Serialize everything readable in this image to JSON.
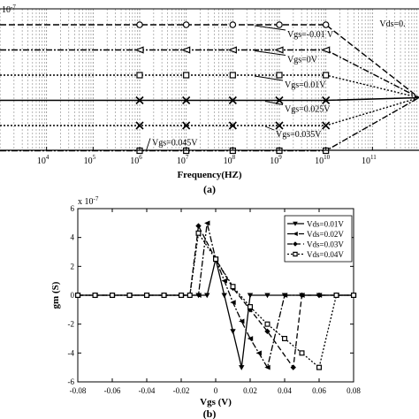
{
  "chart_data": [
    {
      "type": "line",
      "panel_label": "(a)",
      "title": "",
      "xlabel": "Frequency(HZ)",
      "ylabel": "",
      "multiplier": "10",
      "multiplier_exp": "-7",
      "xscale": "log",
      "xlim": [
        1000,
        1000000000000
      ],
      "x_ticks": [
        {
          "base": "10",
          "exp": "4",
          "value": 10000
        },
        {
          "base": "10",
          "exp": "5",
          "value": 100000
        },
        {
          "base": "10",
          "exp": "6",
          "value": 1000000
        },
        {
          "base": "10",
          "exp": "7",
          "value": 10000000
        },
        {
          "base": "10",
          "exp": "8",
          "value": 100000000
        },
        {
          "base": "10",
          "exp": "9",
          "value": 1000000000
        },
        {
          "base": "10",
          "exp": "10",
          "value": 10000000000
        },
        {
          "base": "10",
          "exp": "11",
          "value": 100000000000
        }
      ],
      "grid": true,
      "marker_x": [
        1000000,
        10000000,
        100000000,
        1000000000,
        10000000000
      ],
      "series": [
        {
          "label": "Vgs=-0.01 V",
          "style": "dash",
          "marker": "circle",
          "level": 1
        },
        {
          "label": "Vgs=0V",
          "style": "dashdot",
          "marker": "triangle",
          "level": 2
        },
        {
          "label": "Vgs=0.01V",
          "style": "dot",
          "marker": "square",
          "level": 3
        },
        {
          "label": "Vgs=0.025V",
          "style": "solid",
          "marker": "x",
          "level": 4
        },
        {
          "label": "Vgs=0.035V",
          "style": "dot",
          "marker": "x",
          "level": 5
        },
        {
          "label": "Vgs=0.045V",
          "style": "dashdot",
          "marker": "square",
          "level": 6
        }
      ],
      "legend_fragment": "Vds=0."
    },
    {
      "type": "line",
      "panel_label": "(b)",
      "title": "",
      "xlabel": "Vgs (V)",
      "ylabel": "gm (S)",
      "multiplier": "x 10",
      "multiplier_exp": "-7",
      "xlim": [
        -0.08,
        0.08
      ],
      "ylim": [
        -6,
        6
      ],
      "x_ticks": [
        "-0.08",
        "-0.06",
        "-0.04",
        "-0.02",
        "0",
        "0.02",
        "0.04",
        "0.06",
        "0.08"
      ],
      "y_ticks": [
        "-6",
        "-4",
        "-2",
        "0",
        "2",
        "4",
        "6"
      ],
      "grid": false,
      "legend_position": "top-right",
      "series": [
        {
          "name": "Vds=0.01V",
          "marker": "triangle-down",
          "style": "solid",
          "x": [
            -0.08,
            -0.07,
            -0.06,
            -0.05,
            -0.04,
            -0.03,
            -0.02,
            -0.01,
            -0.005,
            0,
            0.005,
            0.01,
            0.015,
            0.02,
            0.03,
            0.04,
            0.05,
            0.06,
            0.07,
            0.08
          ],
          "y": [
            0,
            0,
            0,
            0,
            0,
            0,
            0,
            0,
            0,
            2.5,
            0,
            -2.5,
            -5,
            0,
            0,
            0,
            0,
            0,
            0,
            0
          ]
        },
        {
          "name": "Vds=0.02V",
          "marker": "triangle-left",
          "style": "dashdot",
          "x": [
            -0.08,
            -0.07,
            -0.06,
            -0.05,
            -0.04,
            -0.03,
            -0.02,
            -0.01,
            -0.005,
            0,
            0.005,
            0.01,
            0.015,
            0.02,
            0.025,
            0.03,
            0.04,
            0.05,
            0.06,
            0.07,
            0.08
          ],
          "y": [
            0,
            0,
            0,
            0,
            0,
            0,
            0,
            0,
            5,
            2.5,
            1,
            -0.5,
            -1.8,
            -3,
            -4,
            -5,
            0,
            0,
            0,
            0,
            0
          ]
        },
        {
          "name": "Vds=0.03V",
          "marker": "diamond",
          "style": "dashed",
          "x": [
            -0.08,
            -0.07,
            -0.06,
            -0.05,
            -0.04,
            -0.03,
            -0.02,
            -0.015,
            -0.01,
            0,
            0.01,
            0.02,
            0.03,
            0.045,
            0.05,
            0.06,
            0.07,
            0.08
          ],
          "y": [
            0,
            0,
            0,
            0,
            0,
            0,
            0,
            0,
            4.8,
            2.5,
            0.5,
            -1,
            -2.5,
            -5,
            0,
            0,
            0,
            0
          ]
        },
        {
          "name": "Vds=0.04V",
          "marker": "square",
          "style": "dotted",
          "x": [
            -0.08,
            -0.07,
            -0.06,
            -0.05,
            -0.04,
            -0.03,
            -0.02,
            -0.015,
            -0.01,
            0,
            0.01,
            0.02,
            0.03,
            0.04,
            0.05,
            0.06,
            0.07,
            0.08
          ],
          "y": [
            0,
            0,
            0,
            0,
            0,
            0,
            0,
            0,
            4.3,
            2.5,
            0.6,
            -0.8,
            -2,
            -3,
            -4,
            -5,
            0,
            0
          ]
        }
      ]
    }
  ]
}
